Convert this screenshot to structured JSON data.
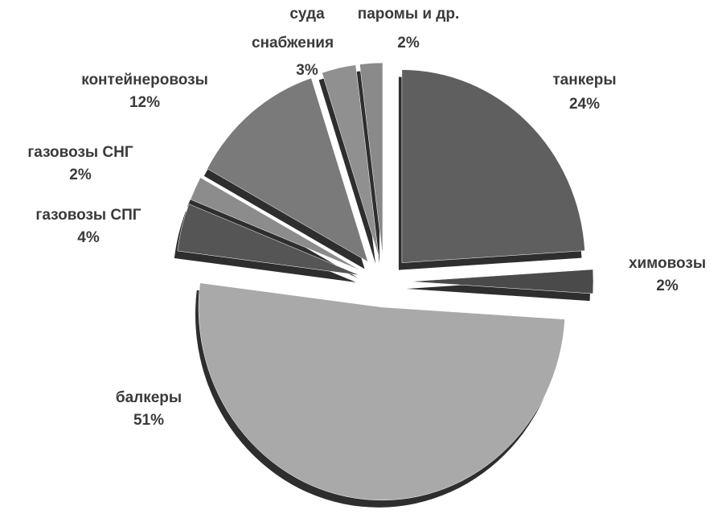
{
  "chart_data": {
    "type": "pie",
    "categories": [
      "танкеры",
      "химовозы",
      "балкеры",
      "газовозы СПГ",
      "газовозы СНГ",
      "контейнеровозы",
      "суда снабжения",
      "паромы и др."
    ],
    "values": [
      24,
      2,
      51,
      4,
      2,
      12,
      3,
      2
    ],
    "value_labels": [
      "24%",
      "2%",
      "51%",
      "4%",
      "2%",
      "12%",
      "3%",
      "2%"
    ],
    "colors": [
      "#5f5f5f",
      "#4a4a4a",
      "#a9a9a9",
      "#555555",
      "#8c8c8c",
      "#7a7a7a",
      "#909090",
      "#8a8a8a"
    ]
  }
}
